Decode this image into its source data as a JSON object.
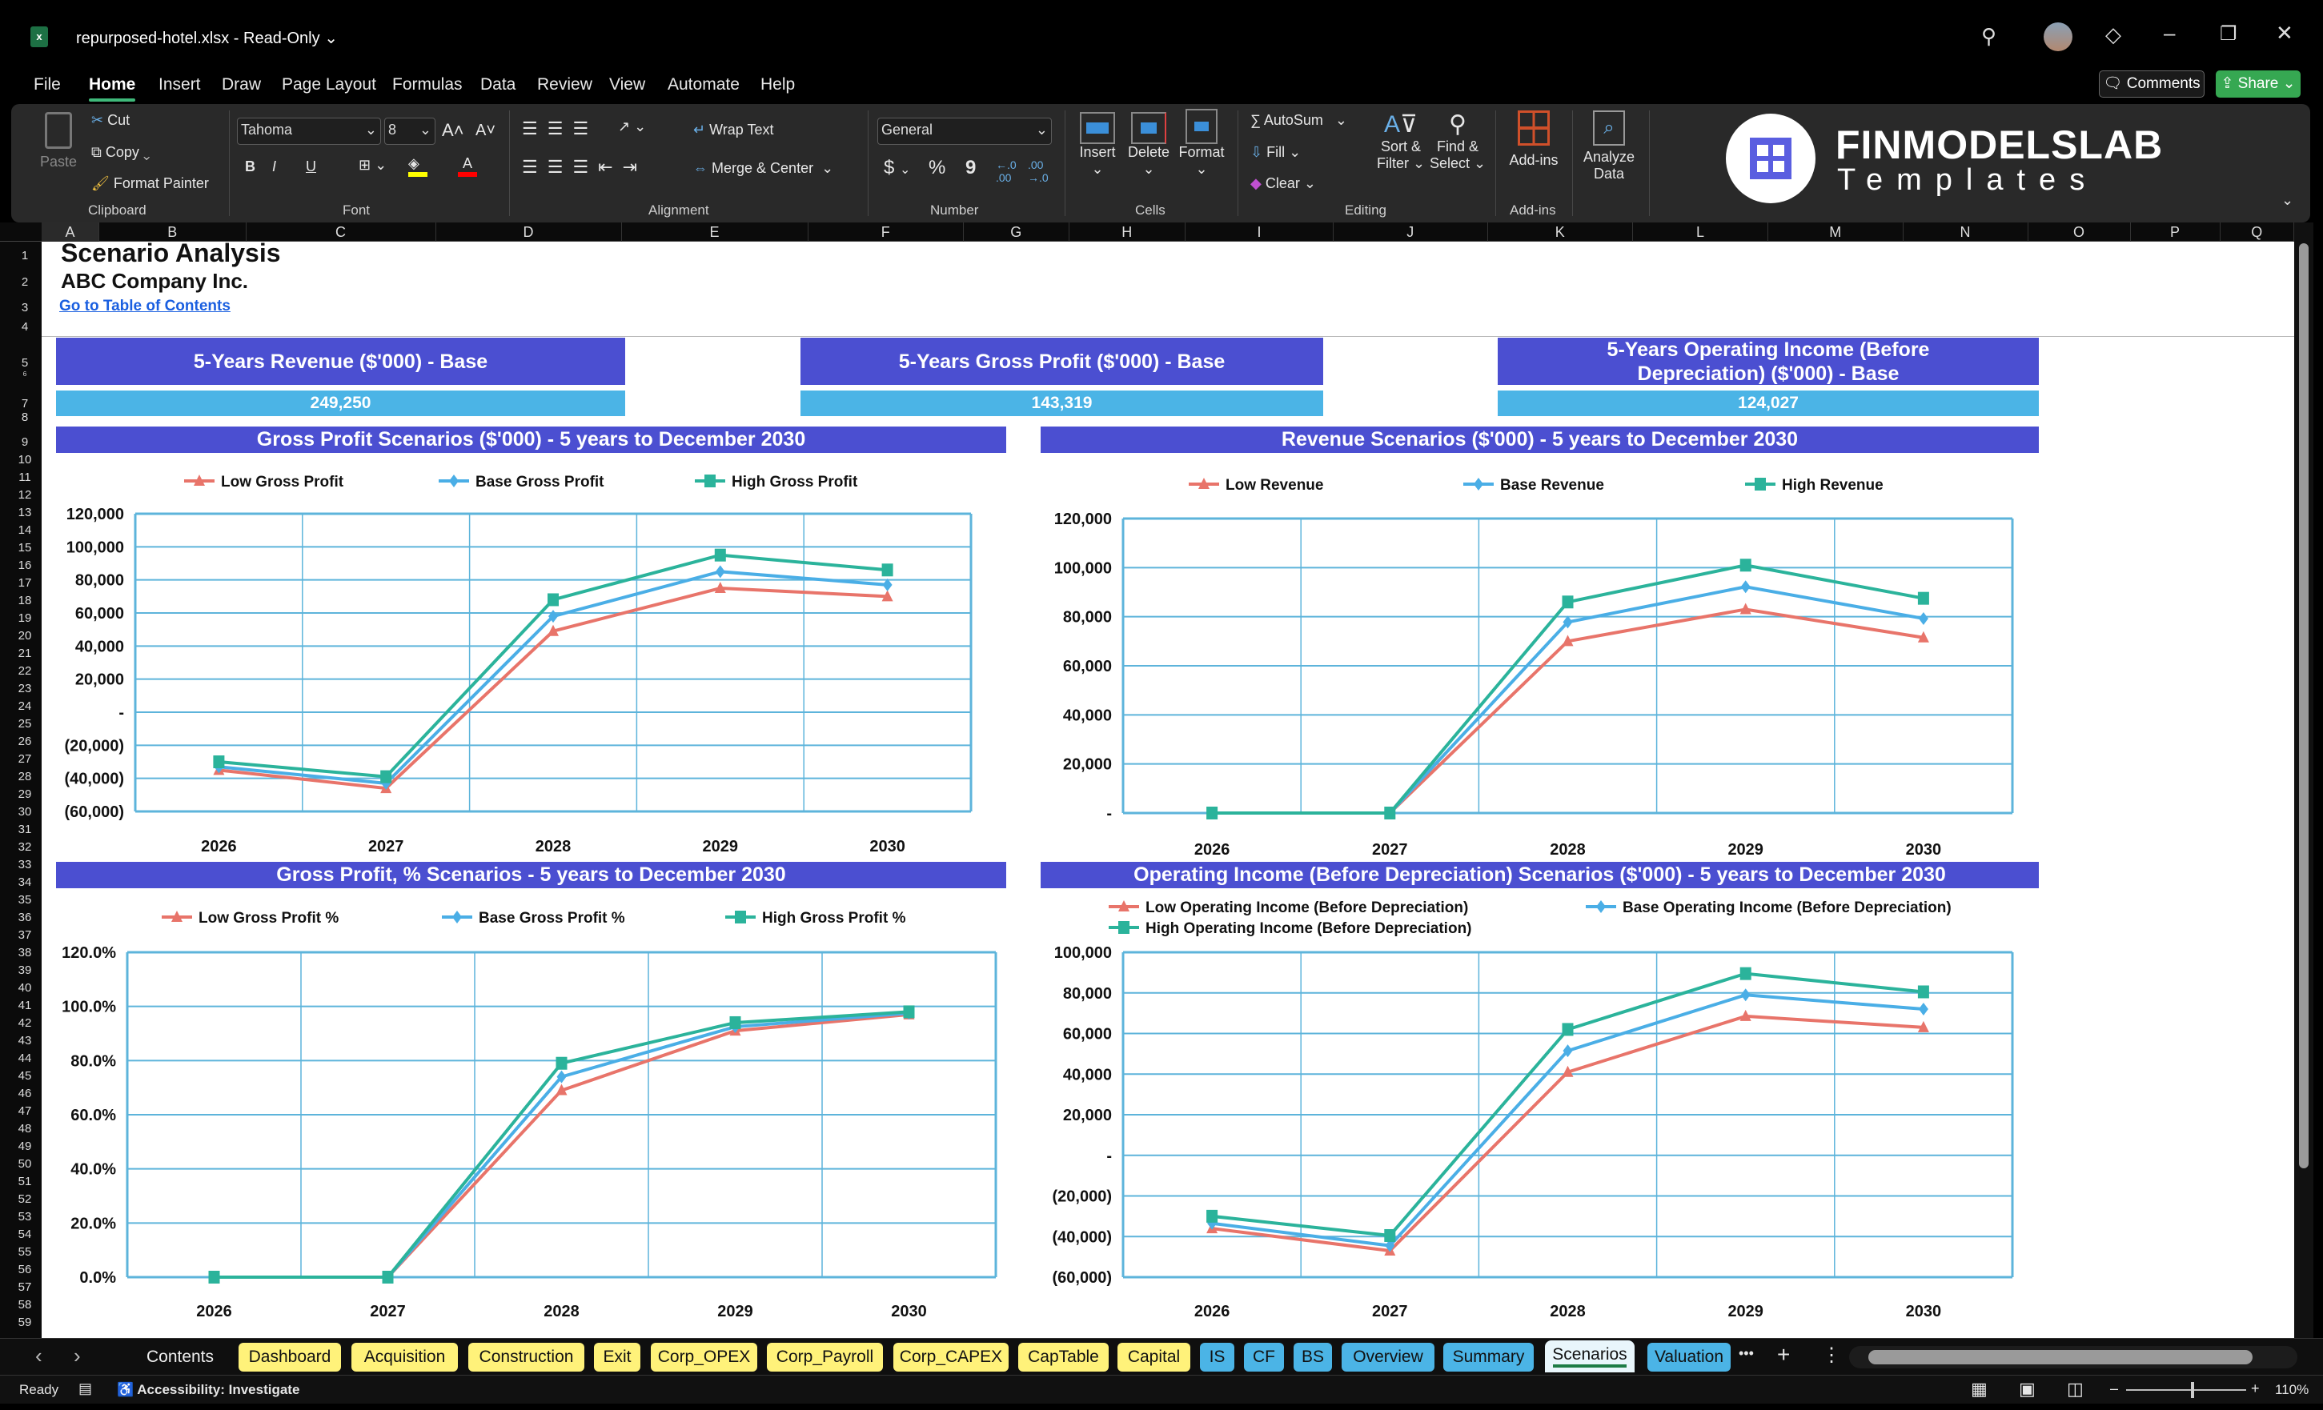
{
  "titlebar": {
    "filename": "repurposed-hotel.xlsx",
    "separator": "-",
    "mode": "Read-Only",
    "window_controls": [
      "search-icon",
      "avatar",
      "diamond-icon",
      "minimize-icon",
      "restore-icon",
      "close-icon"
    ]
  },
  "menu": {
    "tabs": [
      "File",
      "Home",
      "Insert",
      "Draw",
      "Page Layout",
      "Formulas",
      "Data",
      "Review",
      "View",
      "Automate",
      "Help"
    ],
    "active": "Home",
    "comments": "Comments",
    "share": "Share"
  },
  "ribbon": {
    "clipboard": {
      "paste": "Paste",
      "cut": "Cut",
      "copy": "Copy",
      "format_painter": "Format Painter",
      "group": "Clipboard"
    },
    "font": {
      "name": "Tahoma",
      "size": "8",
      "bold": "B",
      "italic": "I",
      "underline": "U",
      "group": "Font",
      "fill_color": "#ffff00",
      "font_color": "#ff0000"
    },
    "alignment": {
      "wrap_text": "Wrap Text",
      "merge_center": "Merge & Center",
      "group": "Alignment"
    },
    "number": {
      "format": "General",
      "currency": "$",
      "percent": "%",
      "comma": "9",
      "group": "Number"
    },
    "cells": {
      "insert": "Insert",
      "delete": "Delete",
      "format": "Format",
      "group": "Cells"
    },
    "editing": {
      "autosum": "AutoSum",
      "fill": "Fill",
      "clear": "Clear",
      "sort_filter_1": "Sort &",
      "sort_filter_2": "Filter",
      "find_select_1": "Find &",
      "find_select_2": "Select",
      "group": "Editing"
    },
    "addins": {
      "addins": "Add-ins",
      "analyze_1": "Analyze",
      "analyze_2": "Data",
      "group": "Add-ins"
    },
    "logo": {
      "brand": "FINMODELSLAB",
      "sub": "Templates"
    }
  },
  "grid": {
    "columns": [
      "A",
      "B",
      "C",
      "D",
      "E",
      "F",
      "G",
      "H",
      "I",
      "J",
      "K",
      "L",
      "M",
      "N",
      "O",
      "P",
      "Q"
    ],
    "rows": [
      "1",
      "2",
      "3",
      "4",
      "5",
      "6",
      "7",
      "8",
      "9",
      "10",
      "11",
      "12",
      "13",
      "14",
      "15",
      "16",
      "17",
      "18",
      "19",
      "20",
      "21",
      "22",
      "23",
      "24",
      "25",
      "26",
      "27",
      "28",
      "29",
      "30",
      "31",
      "32",
      "33",
      "34",
      "35",
      "36",
      "37",
      "38",
      "39",
      "40",
      "41",
      "42",
      "43",
      "44",
      "45",
      "46",
      "47",
      "48",
      "49",
      "50",
      "51",
      "52",
      "53",
      "54",
      "55",
      "56",
      "57",
      "58",
      "59"
    ]
  },
  "sheet": {
    "title": "Scenario Analysis",
    "company": "ABC Company Inc.",
    "toc_link": "Go to Table of Contents",
    "kpis": [
      {
        "label": "5-Years Revenue ($'000) - Base",
        "value": "249,250"
      },
      {
        "label": "5-Years Gross Profit ($'000) - Base",
        "value": "143,319"
      },
      {
        "label": "5-Years Operating Income (Before Depreciation) ($'000) - Base",
        "value": "124,027"
      }
    ]
  },
  "colors": {
    "header": "#4b4fd1",
    "value": "#4bb4e6",
    "low": "#e8746a",
    "base": "#4aaee6",
    "high": "#2bb39b",
    "grid": "#5db4db"
  },
  "chart_data": [
    {
      "type": "line",
      "title": "Gross Profit Scenarios ($'000) - 5 years to December 2030",
      "categories": [
        "2026",
        "2027",
        "2028",
        "2029",
        "2030"
      ],
      "ylim": [
        -60000,
        120000
      ],
      "ytick_labels": [
        "(60,000)",
        "(40,000)",
        "(20,000)",
        "-",
        "20,000",
        "40,000",
        "60,000",
        "80,000",
        "100,000",
        "120,000"
      ],
      "series": [
        {
          "name": "Low Gross Profit",
          "values": [
            -35000,
            -46000,
            49000,
            75000,
            70000
          ]
        },
        {
          "name": "Base Gross Profit",
          "values": [
            -33000,
            -43000,
            58000,
            85000,
            77000
          ]
        },
        {
          "name": "High Gross Profit",
          "values": [
            -30000,
            -39000,
            68000,
            95000,
            86000
          ]
        }
      ]
    },
    {
      "type": "line",
      "title": "Revenue Scenarios ($'000) - 5 years to December 2030",
      "categories": [
        "2026",
        "2027",
        "2028",
        "2029",
        "2030"
      ],
      "ylim": [
        0,
        120000
      ],
      "ytick_labels": [
        "-",
        "20,000",
        "40,000",
        "60,000",
        "80,000",
        "100,000",
        "120,000"
      ],
      "series": [
        {
          "name": "Low Revenue",
          "values": [
            0,
            0,
            70000,
            83000,
            71500
          ]
        },
        {
          "name": "Base Revenue",
          "values": [
            0,
            0,
            77800,
            92200,
            79250
          ]
        },
        {
          "name": "High Revenue",
          "values": [
            0,
            0,
            86000,
            101000,
            87500
          ]
        }
      ]
    },
    {
      "type": "line",
      "title": "Gross Profit, % Scenarios - 5 years to December 2030",
      "categories": [
        "2026",
        "2027",
        "2028",
        "2029",
        "2030"
      ],
      "ylim": [
        0,
        120
      ],
      "ytick_labels": [
        "0.0%",
        "20.0%",
        "40.0%",
        "60.0%",
        "80.0%",
        "100.0%",
        "120.0%"
      ],
      "series": [
        {
          "name": "Low Gross Profit %",
          "values": [
            0,
            0,
            69,
            91,
            97
          ]
        },
        {
          "name": "Base Gross Profit %",
          "values": [
            0,
            0,
            74,
            92.5,
            97.5
          ]
        },
        {
          "name": "High Gross Profit %",
          "values": [
            0,
            0,
            79,
            94,
            98
          ]
        }
      ]
    },
    {
      "type": "line",
      "title": "Operating Income (Before Depreciation) Scenarios ($'000) - 5 years to December 2030",
      "categories": [
        "2026",
        "2027",
        "2028",
        "2029",
        "2030"
      ],
      "ylim": [
        -60000,
        100000
      ],
      "ytick_labels": [
        "(60,000)",
        "(40,000)",
        "(20,000)",
        "-",
        "20,000",
        "40,000",
        "60,000",
        "80,000",
        "100,000"
      ],
      "series": [
        {
          "name": "Low Operating Income (Before Depreciation)",
          "values": [
            -36000,
            -47000,
            41000,
            68500,
            63000
          ]
        },
        {
          "name": "Base Operating Income (Before Depreciation)",
          "values": [
            -33500,
            -44500,
            51500,
            79000,
            72000
          ]
        },
        {
          "name": "High Operating Income (Before Depreciation)",
          "values": [
            -30000,
            -39500,
            62000,
            89500,
            80500
          ]
        }
      ]
    }
  ],
  "sheet_tabs": {
    "nav_prev": "‹",
    "nav_next": "›",
    "items": [
      {
        "label": "Contents",
        "style": "plain"
      },
      {
        "label": "Dashboard",
        "style": "y"
      },
      {
        "label": "Acquisition",
        "style": "y"
      },
      {
        "label": "Construction",
        "style": "y"
      },
      {
        "label": "Exit",
        "style": "y"
      },
      {
        "label": "Corp_OPEX",
        "style": "y"
      },
      {
        "label": "Corp_Payroll",
        "style": "y"
      },
      {
        "label": "Corp_CAPEX",
        "style": "y"
      },
      {
        "label": "CapTable",
        "style": "y"
      },
      {
        "label": "Capital",
        "style": "y"
      },
      {
        "label": "IS",
        "style": "b"
      },
      {
        "label": "CF",
        "style": "b"
      },
      {
        "label": "BS",
        "style": "b"
      },
      {
        "label": "Overview",
        "style": "b"
      },
      {
        "label": "Summary",
        "style": "b"
      },
      {
        "label": "Scenarios",
        "style": "act"
      },
      {
        "label": "Valuation",
        "style": "b"
      }
    ],
    "more": "•••",
    "add": "+",
    "options": "⋮"
  },
  "status": {
    "ready": "Ready",
    "accessibility": "Accessibility: Investigate",
    "zoom": "110%",
    "zoom_fraction": 0.55
  }
}
